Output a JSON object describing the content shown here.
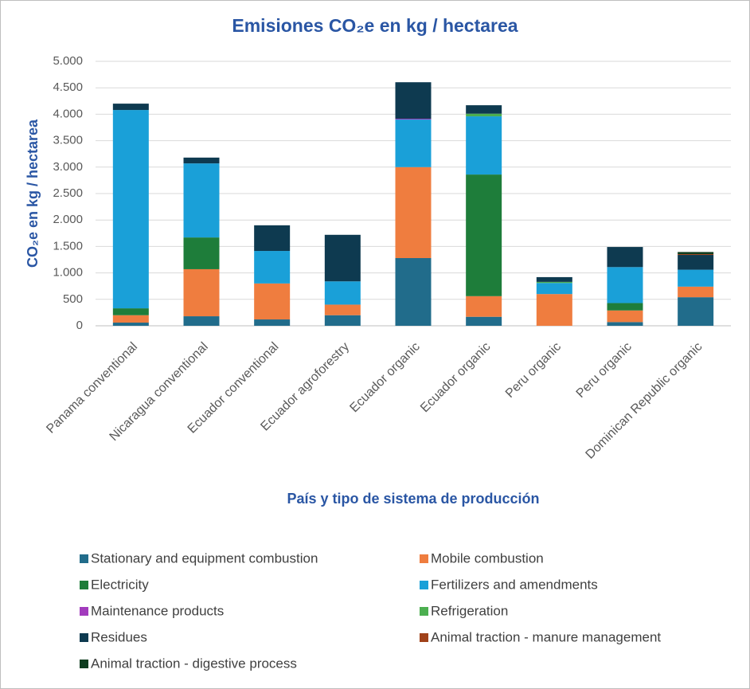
{
  "chart_data": {
    "type": "stacked_bar",
    "title": "Emisiones CO₂e en kg / hectarea",
    "y_label": "CO₂e en kg / hectarea",
    "x_label": "País y tipo de sistema de producción",
    "categories": [
      "Panama conventional",
      "Nicaragua conventional",
      "Ecuador conventional",
      "Ecuador agroforestry",
      "Ecuador organic",
      "Ecuador organic",
      "Peru organic",
      "Peru organic",
      "Dominican Republic organic"
    ],
    "series": [
      {
        "name": "Stationary and equipment combustion",
        "color": "#216c8b",
        "values": [
          60,
          180,
          120,
          200,
          1280,
          170,
          0,
          70,
          540
        ]
      },
      {
        "name": "Mobile combustion",
        "color": "#ef7d3f",
        "values": [
          140,
          890,
          680,
          200,
          1720,
          390,
          600,
          220,
          200
        ]
      },
      {
        "name": "Electricity",
        "color": "#1e7d3a",
        "values": [
          130,
          600,
          0,
          0,
          0,
          2300,
          0,
          140,
          0
        ]
      },
      {
        "name": "Fertilizers and amendments",
        "color": "#1aa0d8",
        "values": [
          3750,
          1400,
          615,
          440,
          900,
          1100,
          210,
          680,
          320
        ]
      },
      {
        "name": "Maintenance products",
        "color": "#a23bbd",
        "values": [
          0,
          0,
          0,
          0,
          15,
          0,
          0,
          0,
          0
        ]
      },
      {
        "name": "Refrigeration",
        "color": "#4caf50",
        "values": [
          0,
          0,
          0,
          0,
          0,
          50,
          20,
          0,
          0
        ]
      },
      {
        "name": "Residues",
        "color": "#0e3a50",
        "values": [
          120,
          110,
          485,
          880,
          690,
          160,
          90,
          380,
          280
        ]
      },
      {
        "name": "Animal traction - manure management",
        "color": "#a0421a",
        "values": [
          0,
          0,
          0,
          0,
          0,
          0,
          0,
          0,
          15
        ]
      },
      {
        "name": "Animal traction - digestive process",
        "color": "#0f3d1f",
        "values": [
          0,
          0,
          0,
          0,
          0,
          0,
          0,
          0,
          40
        ]
      }
    ],
    "ylim": [
      0,
      5000
    ],
    "yticks": [
      0,
      500,
      {
        "value": 1000,
        "label": "1.000"
      },
      {
        "value": 1500,
        "label": "1.500"
      },
      {
        "value": 2000,
        "label": "2.000"
      },
      {
        "value": 2500,
        "label": "2.500"
      },
      {
        "value": 3000,
        "label": "3.000"
      },
      {
        "value": 3500,
        "label": "3.500"
      },
      {
        "value": 4000,
        "label": "4.000"
      },
      {
        "value": 4500,
        "label": "4.500"
      },
      {
        "value": 5000,
        "label": "5.000"
      }
    ],
    "grid": true
  }
}
